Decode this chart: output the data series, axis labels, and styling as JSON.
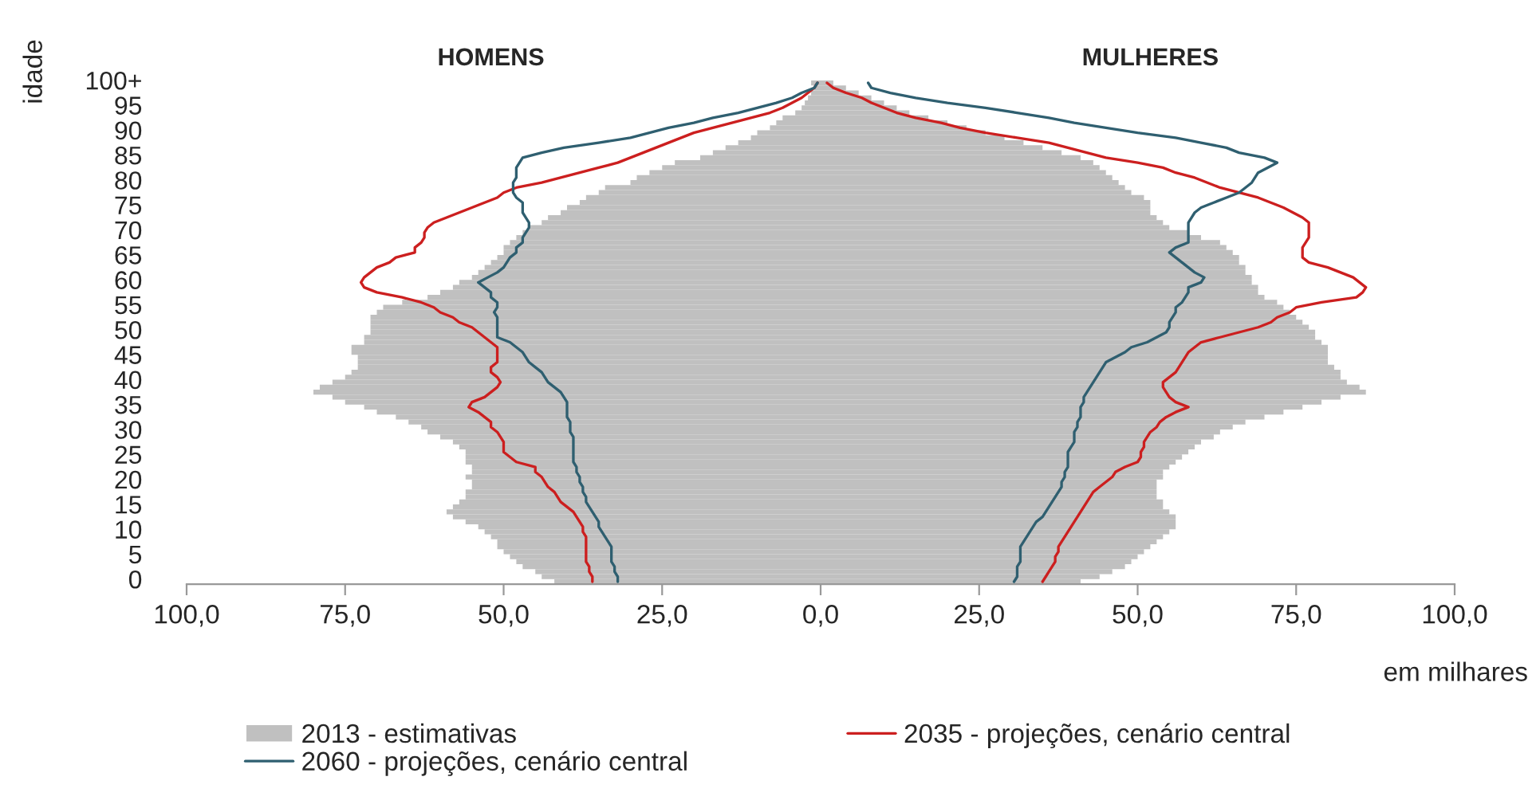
{
  "chart_data": {
    "type": "bar",
    "orientation": "horizontal",
    "stacked": true,
    "ylabel": "idade",
    "xlabel": "em milhares",
    "annotations": [
      "HOMENS",
      "MULHERES"
    ],
    "categories": [
      "100+",
      null,
      null,
      null,
      null,
      "95",
      null,
      null,
      null,
      null,
      "90",
      null,
      null,
      null,
      null,
      "85",
      null,
      null,
      null,
      null,
      "80",
      null,
      null,
      null,
      null,
      "75",
      null,
      null,
      null,
      null,
      "70",
      null,
      null,
      null,
      null,
      "65",
      null,
      null,
      null,
      null,
      "60",
      null,
      null,
      null,
      null,
      "55",
      null,
      null,
      null,
      null,
      "50",
      null,
      null,
      null,
      null,
      "45",
      null,
      null,
      null,
      null,
      "40",
      null,
      null,
      null,
      null,
      "35",
      null,
      null,
      null,
      null,
      "30",
      null,
      null,
      null,
      null,
      "25",
      null,
      null,
      null,
      null,
      "20",
      null,
      null,
      null,
      null,
      "15",
      null,
      null,
      null,
      null,
      "10",
      null,
      null,
      null,
      null,
      "5",
      null,
      null,
      null,
      null,
      "0"
    ],
    "series": [
      {
        "color": "#c0c0c0",
        "values": [
          -1.5,
          -1,
          -1.5,
          -2,
          -2.5,
          -3,
          -4,
          -6,
          -7,
          -8,
          -10,
          -11,
          -13,
          -15,
          -17,
          -19,
          -23,
          -25,
          -27,
          -29,
          -30,
          -34,
          -35,
          -37,
          -38,
          -40,
          -41,
          -43,
          -44,
          -46,
          -47,
          -48,
          -49,
          -50,
          -50,
          -51,
          -52,
          -53,
          -54,
          -55,
          -57,
          -58,
          -60,
          -62,
          -66,
          -69,
          -70,
          -71,
          -71,
          -71,
          -71,
          -72,
          -72,
          -74,
          -74,
          -73,
          -73,
          -73,
          -74,
          -75,
          -77,
          -79,
          -80,
          -77,
          -75,
          -72,
          -70,
          -67,
          -65,
          -63,
          -62,
          -60,
          -58,
          -57,
          -56,
          -56,
          -56,
          -55,
          -55,
          -56,
          -55,
          -55,
          -56,
          -56,
          -57,
          -58,
          -59,
          -58,
          -56,
          -54,
          -53,
          -52,
          -51,
          -51,
          -50,
          -49,
          -48,
          -47,
          -45,
          -44,
          -42
        ]
      },
      {
        "name": "2013 - estimativas",
        "color": "#c0c0c0",
        "values": [
          2,
          4,
          6,
          8,
          10,
          12,
          14,
          17,
          20,
          23,
          26,
          29,
          32,
          35,
          38,
          41,
          43,
          44,
          45,
          46,
          47,
          48,
          49,
          51,
          52,
          52,
          52,
          53,
          54,
          55,
          58,
          60,
          63,
          64,
          65,
          66,
          66,
          67,
          67,
          68,
          68,
          69,
          69,
          70,
          72,
          73,
          74,
          75,
          76,
          77,
          78,
          78,
          79,
          80,
          80,
          80,
          80,
          81,
          82,
          82,
          83,
          85,
          86,
          82,
          79,
          76,
          73,
          70,
          67,
          65,
          63,
          62,
          60,
          59,
          58,
          57,
          56,
          55,
          54,
          54,
          53,
          53,
          53,
          53,
          54,
          54,
          55,
          56,
          56,
          56,
          55,
          54,
          53,
          52,
          51,
          50,
          49,
          48,
          46,
          44,
          41
        ]
      },
      {
        "type": "line",
        "color": "#cc1f1f",
        "values": [
          -0.5,
          -1,
          -2,
          -3,
          -4.5,
          -6,
          -8,
          -11,
          -14,
          -17,
          -20,
          -22,
          -24,
          -26,
          -28,
          -30,
          -32,
          -35,
          -38,
          -41,
          -44,
          -48,
          -50,
          -51,
          -53,
          -55,
          -57,
          -59,
          -61,
          -62,
          -62.5,
          -62.5,
          -63,
          -64,
          -64,
          -67,
          -68,
          -70,
          -71,
          -72,
          -72.5,
          -72,
          -70,
          -66,
          -63,
          -61,
          -60,
          -58,
          -57,
          -55,
          -54,
          -53,
          -52,
          -51,
          -51,
          -51,
          -51,
          -52,
          -52,
          -51,
          -50.5,
          -51,
          -52,
          -53,
          -55,
          -55.5,
          -54,
          -53,
          -52,
          -52,
          -51,
          -50.5,
          -50,
          -50,
          -50,
          -49,
          -48,
          -45,
          -45,
          -44,
          -43.5,
          -43,
          -42,
          -41.5,
          -41,
          -40,
          -39,
          -38.5,
          -38,
          -37.5,
          -37.5,
          -37,
          -37,
          -37,
          -37,
          -37,
          -37,
          -36.5,
          -36.5,
          -36,
          -36
        ]
      },
      {
        "type": "line",
        "name": "2035 - projeções, cenário central",
        "color": "#cc1f1f",
        "values": [
          1,
          2,
          4,
          6.5,
          8,
          10,
          12,
          15,
          19,
          22,
          26,
          31,
          36,
          39,
          42,
          45,
          50,
          54,
          56,
          59,
          61,
          63,
          66,
          69,
          71,
          73,
          74.5,
          76,
          77,
          77,
          77,
          77,
          76.5,
          76,
          76,
          76,
          77,
          80,
          82,
          84,
          85,
          86,
          85.5,
          84.5,
          79,
          75,
          74,
          72,
          71,
          69,
          66,
          63,
          60,
          59,
          58,
          57.5,
          57,
          56.5,
          56,
          55,
          54,
          54,
          54.5,
          55,
          56,
          58,
          56,
          54.5,
          53.5,
          53,
          52,
          51.5,
          51,
          51,
          50.5,
          50.5,
          50,
          48,
          46.5,
          46,
          45,
          44,
          43,
          42.5,
          42,
          41.5,
          41,
          40.5,
          40,
          39.5,
          39,
          38.5,
          38,
          37.5,
          37.5,
          37,
          37,
          36.5,
          36,
          35.5,
          35
        ]
      },
      {
        "type": "line",
        "color": "#2f5f70",
        "values": [
          -0.5,
          -1,
          -3,
          -4.5,
          -7,
          -10,
          -13,
          -17,
          -20,
          -24,
          -27,
          -30,
          -35,
          -40.5,
          -44,
          -47,
          -47.5,
          -48,
          -48,
          -48,
          -48.5,
          -48.5,
          -48.5,
          -48,
          -47,
          -47,
          -47,
          -46.5,
          -46,
          -46,
          -46.5,
          -47,
          -47,
          -48,
          -48,
          -49,
          -49.5,
          -50,
          -51,
          -52.5,
          -54,
          -53,
          -52,
          -52,
          -51,
          -51,
          -51.5,
          -51,
          -51,
          -51,
          -51,
          -51,
          -49,
          -48,
          -47,
          -46.5,
          -46,
          -45,
          -44,
          -43.5,
          -43,
          -42,
          -41,
          -40.5,
          -40,
          -40,
          -40,
          -40,
          -39.5,
          -39.5,
          -39.5,
          -39,
          -39,
          -39,
          -39,
          -39,
          -39,
          -38.5,
          -38.5,
          -38,
          -38,
          -37.5,
          -37.5,
          -37,
          -37,
          -36.5,
          -36,
          -35.5,
          -35,
          -35,
          -34.5,
          -34,
          -33.5,
          -33,
          -33,
          -33,
          -33,
          -32.5,
          -32.5,
          -32,
          -32
        ]
      },
      {
        "type": "line",
        "name": "2060 - projeções, cenário central",
        "color": "#2f5f70",
        "values": [
          7.5,
          8,
          11,
          15,
          20,
          26,
          31,
          36,
          40,
          45,
          50,
          56,
          60,
          64,
          66,
          70,
          72,
          70.5,
          69,
          68.5,
          68,
          67,
          66,
          64,
          62,
          60,
          59,
          58.5,
          58,
          58,
          58,
          58,
          58,
          56,
          55,
          56,
          57,
          58,
          59,
          60.5,
          60,
          58,
          58,
          57.5,
          57,
          56,
          56,
          55.5,
          55,
          55,
          54.5,
          53,
          51.5,
          49,
          48,
          46.5,
          45,
          44.5,
          44,
          43.5,
          43,
          42.5,
          42,
          41.5,
          41.5,
          41,
          41,
          41,
          40.5,
          40.5,
          40,
          40,
          40,
          39.5,
          39,
          39,
          39,
          39,
          38.5,
          38.5,
          38,
          38,
          37.5,
          37,
          36.5,
          36,
          35.5,
          35,
          34,
          33.5,
          33,
          32.5,
          32,
          31.5,
          31.5,
          31.5,
          31.5,
          31,
          31,
          31,
          30.5
        ]
      }
    ],
    "xlim": [
      -100,
      100
    ],
    "xticks": [
      {
        "value": -100,
        "label": "100,0"
      },
      {
        "value": -75,
        "label": "75,0"
      },
      {
        "value": -50,
        "label": "50,0"
      },
      {
        "value": -25,
        "label": "25,0"
      },
      {
        "value": 0,
        "label": "0,0"
      },
      {
        "value": 25,
        "label": "25,0"
      },
      {
        "value": 50,
        "label": "50,0"
      },
      {
        "value": 75,
        "label": "75,0"
      },
      {
        "value": 100,
        "label": "100,0"
      }
    ],
    "grid": false,
    "legend": "bottom",
    "marker": "none",
    "line_style": "solid"
  }
}
